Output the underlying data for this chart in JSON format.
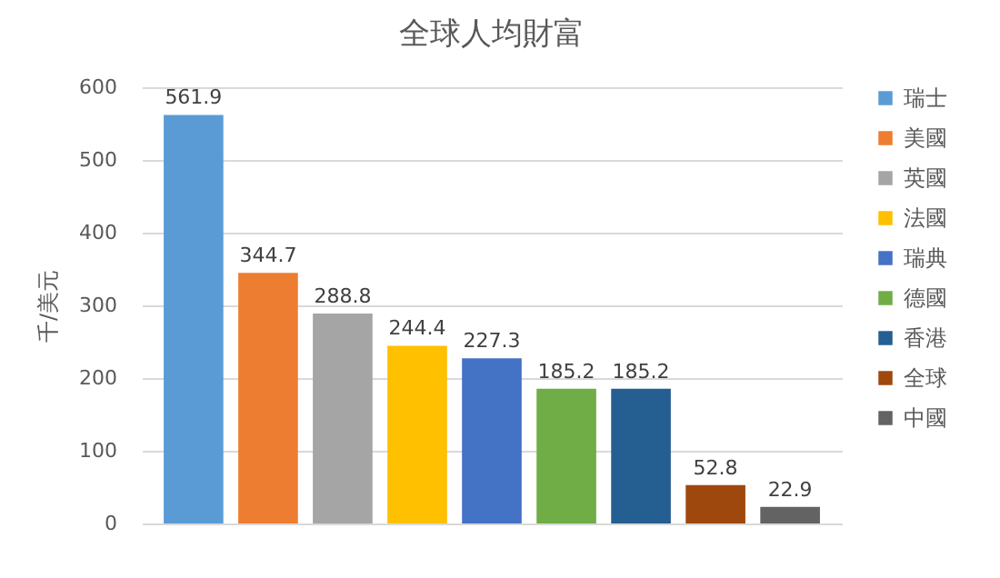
{
  "chart_data": {
    "type": "bar",
    "title": "全球人均財富",
    "ylabel": "千/美元",
    "categories": [
      null
    ],
    "series": [
      {
        "name": "瑞士",
        "color": "#5b9bd5",
        "values": [
          561.9
        ]
      },
      {
        "name": "美國",
        "color": "#ed7d31",
        "values": [
          344.7
        ]
      },
      {
        "name": "英國",
        "color": "#a5a5a5",
        "values": [
          288.8
        ]
      },
      {
        "name": "法國",
        "color": "#ffc000",
        "values": [
          244.4
        ]
      },
      {
        "name": "瑞典",
        "color": "#4472c4",
        "values": [
          227.3
        ]
      },
      {
        "name": "德國",
        "color": "#70ad47",
        "values": [
          185.2
        ]
      },
      {
        "name": "香港",
        "color": "#255e91",
        "values": [
          185.2
        ]
      },
      {
        "name": "全球",
        "color": "#9e480e",
        "values": [
          52.8
        ]
      },
      {
        "name": "中國",
        "color": "#636363",
        "values": [
          22.9
        ]
      }
    ],
    "ylim": [
      0,
      600
    ],
    "yticks": [
      0,
      100,
      200,
      300,
      400,
      500,
      600
    ],
    "grid": "y",
    "legend": "right",
    "data_labels": true
  }
}
